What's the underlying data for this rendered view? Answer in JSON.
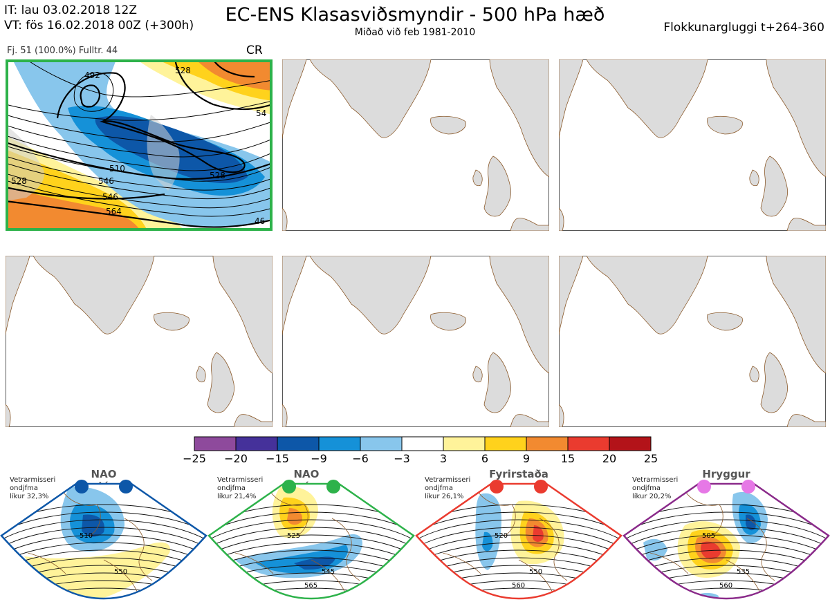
{
  "header": {
    "init_time": "IT: lau 03.02.2018 12Z",
    "valid_time": "VT: fös 16.02.2018 00Z  (+300h)",
    "title": "EC-ENS Klasasviðsmyndir - 500 hPa hæð",
    "subtitle": "Miðað við feb 1981-2010",
    "window": "Flokkunargluggi t+264-360"
  },
  "cluster_panel": {
    "info": "Fj. 51 (100.0%)   Fulltr. 44",
    "label": "CR",
    "contour_labels": [
      "492",
      "528",
      "510",
      "528",
      "546",
      "564",
      "546",
      "528",
      "54",
      "46"
    ],
    "border_color": "#2db24a"
  },
  "empty_panels_count": 5,
  "colorbar": {
    "ticks": [
      "−25",
      "−20",
      "−15",
      "−9",
      "−6",
      "−3",
      "3",
      "6",
      "9",
      "15",
      "20",
      "25"
    ],
    "colors": [
      "#8e4a9c",
      "#45319a",
      "#0d57a8",
      "#1591d8",
      "#88c6ec",
      "#ffffff",
      "#fff39a",
      "#ffd21c",
      "#f28a30",
      "#ea3b2f",
      "#b31319"
    ]
  },
  "regimes": [
    {
      "name": "NAO plús",
      "desc_1": "Vetrarmisseri",
      "desc_2": "ondjfma",
      "desc_3": "líkur 32,3%",
      "dot_color": "#0d57a8",
      "border_color": "#0d57a8",
      "labels": [
        "510",
        "550"
      ]
    },
    {
      "name": "NAO mínus",
      "desc_1": "Vetrarmisseri",
      "desc_2": "ondjfma",
      "desc_3": "líkur 21,4%",
      "dot_color": "#2db24a",
      "border_color": "#2db24a",
      "labels": [
        "525",
        "545",
        "565"
      ]
    },
    {
      "name": "Fyrirstaða",
      "desc_1": "Vetrarmisseri",
      "desc_2": "ondjfma",
      "desc_3": "líkur 26,1%",
      "dot_color": "#ea3b2f",
      "border_color": "#ea3b2f",
      "labels": [
        "520",
        "550",
        "560"
      ]
    },
    {
      "name": "Hryggur",
      "desc_1": "Vetrarmisseri",
      "desc_2": "ondjfma",
      "desc_3": "líkur 20,2%",
      "dot_color": "#e678e6",
      "border_color": "#8a2a8a",
      "labels": [
        "505",
        "535",
        "560"
      ]
    }
  ]
}
